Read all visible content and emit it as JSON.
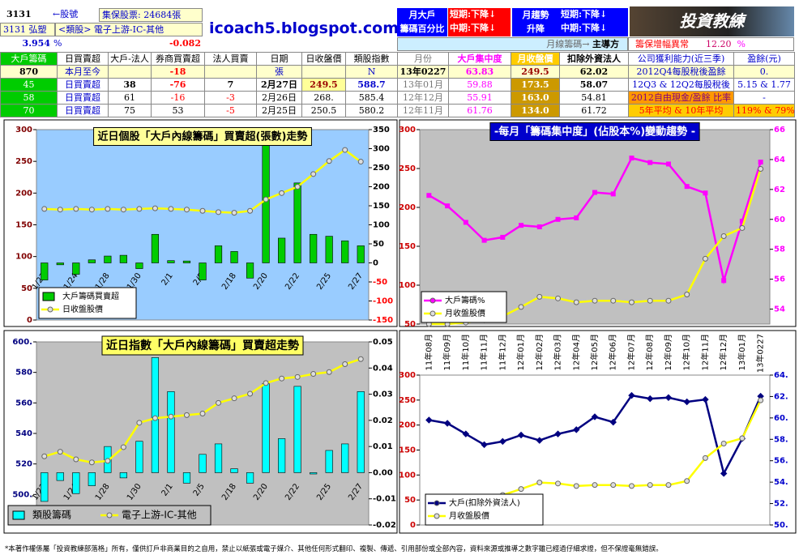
{
  "header": {
    "stock_code": "3131",
    "stock_code_label": "←股號",
    "custody": "集保股票: 24684張",
    "stock_name": "3131 弘塑",
    "sector": "<類股> 電子上游-IC-其他",
    "pct": "3.954",
    "pct_unit": "%",
    "change": "-0.082",
    "site": "icoach5.blogspot.com",
    "monthly_big": [
      "月大戶",
      "籌碼百分比"
    ],
    "big_short": "短期:下降↓",
    "big_mid": "中期:下降↓",
    "trend": [
      "月趨勢",
      "升降"
    ],
    "trend_short": "短期:下降↓",
    "trend_mid": "中期:下降↓",
    "logo": "投資教練",
    "main_force_label": "月線籌碼→",
    "main_force": "主導方",
    "alert": "籌保增幅異常",
    "alert_value": "12.20",
    "alert_unit": "%"
  },
  "table": {
    "columns": [
      "大戶籌碼",
      "日買賣超",
      "大戶-法人",
      "券商買賣超",
      "法人買賣",
      "日期",
      "日收盤價",
      "類股指數",
      "月份",
      "大戶集中度",
      "月收盤價",
      "扣除外資法人",
      "公司獲利能力(近三季)",
      "盈餘(元)"
    ],
    "rows": [
      [
        "870",
        "本月至今",
        null,
        "-18",
        null,
        "張",
        null,
        "N",
        "13年0227",
        "63.83",
        "249.5",
        "62.02",
        "2012Q4每股稅後盈餘",
        "0."
      ],
      [
        "45",
        "日買賣超",
        "38",
        "-76",
        "7",
        "2月27日",
        "249.5",
        "588.7",
        "13年01月",
        "59.88",
        "173.5",
        "58.07",
        "12Q3 & 12Q2每股稅後",
        "5.15 & 1.77"
      ],
      [
        "58",
        "日買賣超",
        "61",
        "-16",
        "-3",
        "2月26日",
        "268.",
        "585.4",
        "12年12月",
        "55.91",
        "163.0",
        "54.81",
        "2012自由現金/盈餘 比率",
        "-"
      ],
      [
        "70",
        "日買賣超",
        "75",
        "53",
        "-5",
        "2月25日",
        "250.5",
        "580.2",
        "12年11月",
        "61.76",
        "134.0",
        "61.72",
        "5年平均 & 10年平均",
        "119% & 79%"
      ]
    ]
  },
  "chart_data": [
    {
      "type": "combo",
      "title": "近日個股「大戶內線籌碼」買賣超(張數)走勢",
      "categories": [
        "1/22",
        null,
        "1/24",
        null,
        "1/28",
        null,
        "1/30",
        null,
        "2/1",
        null,
        "2/5",
        null,
        "2/18",
        null,
        "2/20",
        null,
        "2/22",
        null,
        "2/25",
        null,
        "2/27"
      ],
      "series": [
        {
          "name": "大戶籌碼買賣超",
          "type": "bar",
          "color": "#00cc00",
          "axis": "y2",
          "values": [
            -45,
            -5,
            -30,
            8,
            18,
            20,
            -15,
            75,
            6,
            5,
            -45,
            45,
            30,
            -40,
            310,
            65,
            210,
            75,
            70,
            58,
            45
          ]
        },
        {
          "name": "日收盤股價",
          "type": "line",
          "color": "#ffff00",
          "values": [
            175,
            174,
            175,
            174,
            175,
            174,
            175,
            176,
            175,
            174,
            172,
            170,
            169,
            172,
            190,
            200,
            210,
            230,
            250.5,
            268,
            249.5
          ]
        }
      ],
      "ylim": [
        0,
        300
      ],
      "yticks": [
        0,
        50,
        100,
        150,
        200,
        250,
        300
      ],
      "y2lim": [
        -150,
        350
      ],
      "y2ticks": [
        -150,
        -100,
        -50,
        0,
        50,
        100,
        150,
        200,
        250,
        300,
        350
      ]
    },
    {
      "type": "line",
      "title": "-每月「籌碼集中度」(佔股本%)變動趨勢 -",
      "series": [
        {
          "name": "大戶籌碼%",
          "color": "#ff00ff",
          "axis": "y2",
          "values": [
            61.6,
            60.9,
            59.8,
            58.6,
            58.8,
            59.6,
            59.5,
            60.0,
            60.1,
            61.8,
            61.7,
            64.1,
            63.8,
            63.7,
            62.2,
            61.76,
            55.91,
            59.88,
            63.83
          ]
        },
        {
          "name": "月收盤股價",
          "color": "#ffff00",
          "values": [
            50,
            50,
            52,
            55,
            60,
            72,
            85,
            83,
            78,
            80,
            80,
            78,
            80,
            80,
            88,
            134,
            163,
            173.5,
            249.5
          ]
        }
      ],
      "ylim": [
        50,
        300
      ],
      "yticks": [
        50,
        100,
        150,
        200,
        250,
        300
      ],
      "y2lim": [
        53,
        66
      ],
      "y2ticks": [
        54,
        56,
        58,
        60,
        62,
        64,
        66
      ]
    },
    {
      "type": "combo",
      "title": "近日指數「大戶內線籌碼」買賣超走勢",
      "categories": [
        "1/22",
        null,
        "1/24",
        null,
        "1/28",
        null,
        "1/30",
        null,
        "2/1",
        null,
        "2/5",
        null,
        "2/18",
        null,
        "2/20",
        null,
        "2/22",
        null,
        "2/25",
        null,
        "2/27"
      ],
      "series": [
        {
          "name": "類股籌碼",
          "type": "bar",
          "color": "#00ffff",
          "axis": "y2",
          "values": [
            -0.011,
            -0.003,
            -0.008,
            -0.005,
            0.01,
            -0.002,
            0.012,
            0.044,
            0.031,
            -0.004,
            0.007,
            0.011,
            0.0015,
            -0.004,
            0.034,
            0.013,
            0.033,
            -0.0005,
            0.0085,
            0.011,
            0.031
          ]
        },
        {
          "name": "電子上游-IC-其他",
          "type": "line",
          "color": "#ffff00",
          "values": [
            525,
            528,
            523,
            521,
            522,
            531,
            547,
            550,
            551,
            552,
            553,
            560,
            563,
            566,
            573,
            576,
            577,
            579,
            580.2,
            585.4,
            588.7
          ]
        }
      ],
      "ylim": [
        480,
        600
      ],
      "yticks": [
        {
          "value": 500,
          "label": "500."
        },
        520,
        540,
        560,
        580,
        {
          "value": 600,
          "label": "600."
        }
      ],
      "y2lim": [
        -0.02,
        0.05
      ],
      "y2ticks": [
        -0.02,
        -0.01,
        {
          "value": 0,
          "label": "0.00"
        },
        0.01,
        0.02,
        0.03,
        0.04,
        0.05
      ]
    },
    {
      "type": "line",
      "categories": [
        "11年08月",
        "11年09月",
        "11年10月",
        "11年11月",
        "11年12月",
        "12年01月",
        "12年02月",
        "12年03月",
        "12年04月",
        "12年05月",
        "12年06月",
        "12年07月",
        "12年08月",
        "12年09月",
        "12年10月",
        "12年11月",
        "12年12月",
        "13年01月",
        "13年0227"
      ],
      "series": [
        {
          "name": "大戶(扣除外資法人)",
          "color": "#000080",
          "axis": "y2",
          "values": [
            59.8,
            59.5,
            58.5,
            57.5,
            57.8,
            58.4,
            57.9,
            58.5,
            58.9,
            60.1,
            59.6,
            62.1,
            61.8,
            61.9,
            61.5,
            61.72,
            54.81,
            58.07,
            62.02
          ]
        },
        {
          "name": "月收盤股價",
          "color": "#ffff00",
          "values": [
            50,
            50,
            52,
            55,
            60,
            72,
            85,
            83,
            78,
            80,
            80,
            78,
            80,
            80,
            88,
            134,
            163,
            173.5,
            249.5
          ]
        }
      ],
      "ylim": [
        0,
        300
      ],
      "yticks": [
        0,
        50,
        100,
        150,
        200,
        250,
        300
      ],
      "y2lim": [
        50,
        64
      ],
      "y2ticks": [
        {
          "value": 50,
          "label": "50."
        },
        {
          "value": 52,
          "label": "52."
        },
        {
          "value": 54,
          "label": "54."
        },
        {
          "value": 56,
          "label": "56."
        },
        {
          "value": 58,
          "label": "58."
        },
        {
          "value": 60,
          "label": "60."
        },
        {
          "value": 62,
          "label": "62."
        },
        {
          "value": 64,
          "label": "64."
        }
      ]
    }
  ],
  "footer": "*本著作權係屬「投資教練部落格」所有，僅供訂戶非商業目的之自用，禁止以紙張或電子媒介、其他任何形式翻印、複製、傳遞、引用部份或全部內容，資料來源或推導之數字雖已經過仔細求證，但不保證毫無錯誤。"
}
